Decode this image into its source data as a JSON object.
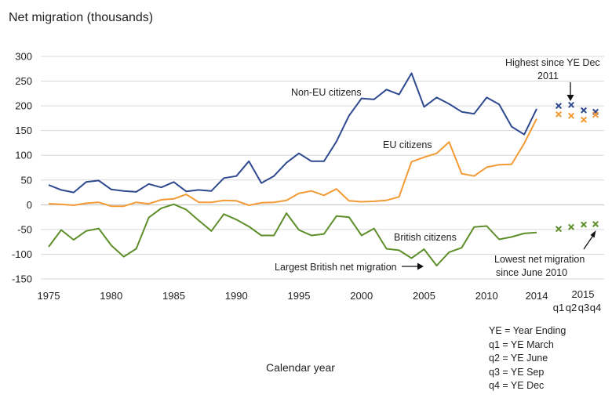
{
  "chart_data": {
    "type": "line",
    "title": "Net migration (thousands)",
    "xlabel": "Calendar year",
    "ylabel": "",
    "ylim": [
      -150,
      300
    ],
    "y_ticks": [
      "300",
      "250",
      "200",
      "150",
      "100",
      "50",
      "0",
      "-50",
      "-100",
      "-150"
    ],
    "x_ticks": [
      "1975",
      "1980",
      "1985",
      "1990",
      "1995",
      "2000",
      "2005",
      "2010",
      "2014"
    ],
    "quarter_labels": [
      "q1",
      "q2",
      "q3",
      "q4"
    ],
    "quarter_year_label": "2015",
    "grid": "horizontal",
    "x": [
      1975,
      1976,
      1977,
      1978,
      1979,
      1980,
      1981,
      1982,
      1983,
      1984,
      1985,
      1986,
      1987,
      1988,
      1989,
      1990,
      1991,
      1992,
      1993,
      1994,
      1995,
      1996,
      1997,
      1998,
      1999,
      2000,
      2001,
      2002,
      2003,
      2004,
      2005,
      2006,
      2007,
      2008,
      2009,
      2010,
      2011,
      2012,
      2013,
      2014
    ],
    "series": [
      {
        "name": "Non-EU citizens",
        "color": "#2E4A8F",
        "values": [
          40,
          30,
          25,
          46,
          49,
          31,
          28,
          26,
          42,
          35,
          46,
          27,
          30,
          28,
          54,
          58,
          88,
          44,
          58,
          85,
          104,
          88,
          88,
          128,
          180,
          215,
          213,
          233,
          223,
          266,
          198,
          217,
          204,
          188,
          184,
          217,
          203,
          158,
          142,
          194
        ],
        "quarters": [
          200,
          202,
          191,
          188
        ]
      },
      {
        "name": "EU citizens",
        "color": "#F39A34",
        "values": [
          2,
          1,
          -1,
          3,
          5,
          -3,
          -3,
          5,
          2,
          10,
          12,
          21,
          5,
          5,
          9,
          8,
          -1,
          4,
          5,
          9,
          23,
          28,
          19,
          32,
          8,
          6,
          7,
          9,
          16,
          87,
          96,
          104,
          127,
          63,
          58,
          76,
          81,
          82,
          124,
          174
        ],
        "quarters": [
          183,
          180,
          172,
          182
        ]
      },
      {
        "name": "British citizens",
        "color": "#5E8E2A",
        "values": [
          -85,
          -51,
          -71,
          -53,
          -48,
          -82,
          -105,
          -89,
          -26,
          -7,
          1,
          -10,
          -32,
          -53,
          -19,
          -30,
          -44,
          -62,
          -62,
          -17,
          -51,
          -62,
          -59,
          -23,
          -25,
          -62,
          -48,
          -89,
          -92,
          -108,
          -90,
          -123,
          -96,
          -87,
          -45,
          -43,
          -70,
          -65,
          -58,
          -56
        ],
        "quarters": [
          -49,
          -45,
          -40,
          -39
        ]
      }
    ],
    "annotations": [
      {
        "text_lines": [
          "Highest since YE Dec",
          "2011"
        ]
      },
      {
        "text_lines": [
          "Largest British net migration"
        ]
      },
      {
        "text_lines": [
          "Lowest net migration",
          "since June 2010"
        ]
      }
    ]
  },
  "legend": {
    "lines": [
      "YE = Year Ending",
      "q1 = YE March",
      "q2 =  YE June",
      "q3 = YE Sep",
      "q4 = YE Dec"
    ]
  }
}
